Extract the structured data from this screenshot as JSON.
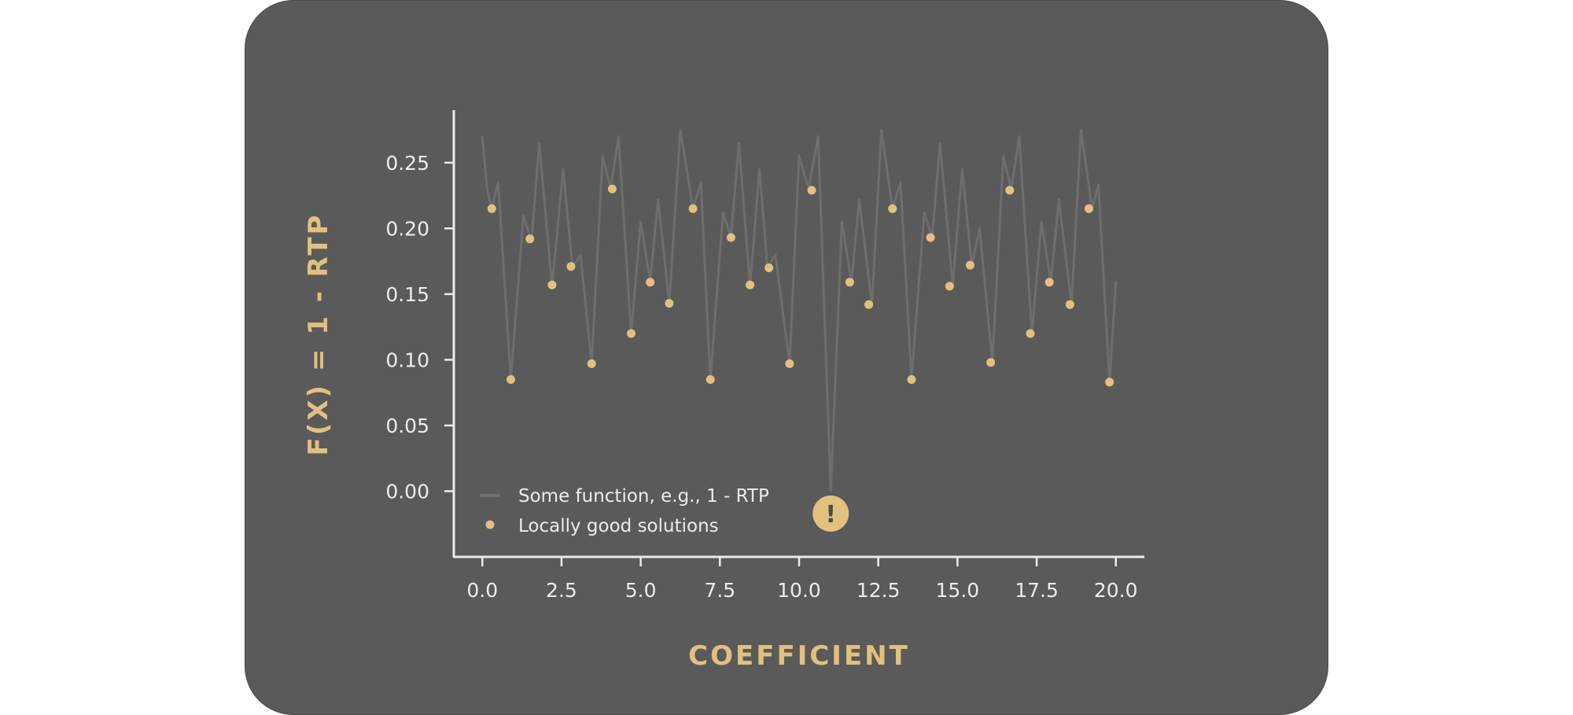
{
  "chart_data": {
    "type": "line",
    "xlabel": "COEFFICIENT",
    "ylabel": "F(X) = 1 - RTP",
    "xlim": [
      -0.9,
      20.9
    ],
    "ylim": [
      -0.05,
      0.29
    ],
    "xticks": [
      "0.0",
      "2.5",
      "5.0",
      "7.5",
      "10.0",
      "12.5",
      "15.0",
      "17.5",
      "20.0"
    ],
    "xtick_values": [
      0,
      2.5,
      5,
      7.5,
      10,
      12.5,
      15,
      17.5,
      20
    ],
    "yticks": [
      "0.00",
      "0.05",
      "0.10",
      "0.15",
      "0.20",
      "0.25"
    ],
    "ytick_values": [
      0,
      0.05,
      0.1,
      0.15,
      0.2,
      0.25
    ],
    "legend_position": "lower-left",
    "colors": {
      "background": "#5a5a5a",
      "line": "#6e6e6e",
      "points": "#e2c07f",
      "axis": "#ececec",
      "title": "#e2c07f"
    },
    "series": [
      {
        "name": "Some function, e.g., 1 - RTP",
        "kind": "line",
        "x": [
          0.0,
          0.15,
          0.3,
          0.5,
          0.9,
          1.3,
          1.55,
          1.8,
          2.2,
          2.55,
          2.85,
          3.1,
          3.45,
          3.8,
          4.05,
          4.3,
          4.7,
          5.0,
          5.3,
          5.55,
          5.9,
          6.25,
          6.65,
          6.9,
          7.2,
          7.6,
          7.85,
          8.1,
          8.45,
          8.75,
          9.0,
          9.25,
          9.7,
          10.0,
          10.3,
          10.6,
          11.0,
          11.35,
          11.65,
          11.9,
          12.3,
          12.6,
          12.95,
          13.2,
          13.55,
          13.95,
          14.2,
          14.45,
          14.85,
          15.15,
          15.45,
          15.7,
          16.1,
          16.45,
          16.7,
          16.95,
          17.35,
          17.65,
          17.95,
          18.2,
          18.6,
          18.9,
          19.25,
          19.45,
          19.8,
          20.0
        ],
        "y": [
          0.27,
          0.23,
          0.215,
          0.235,
          0.085,
          0.21,
          0.19,
          0.265,
          0.155,
          0.245,
          0.17,
          0.18,
          0.097,
          0.255,
          0.23,
          0.27,
          0.12,
          0.205,
          0.16,
          0.222,
          0.143,
          0.275,
          0.215,
          0.235,
          0.085,
          0.212,
          0.193,
          0.265,
          0.156,
          0.245,
          0.17,
          0.18,
          0.097,
          0.255,
          0.23,
          0.27,
          0.0,
          0.205,
          0.159,
          0.222,
          0.142,
          0.275,
          0.215,
          0.235,
          0.085,
          0.212,
          0.193,
          0.265,
          0.156,
          0.245,
          0.172,
          0.2,
          0.098,
          0.255,
          0.23,
          0.27,
          0.12,
          0.205,
          0.159,
          0.222,
          0.142,
          0.275,
          0.215,
          0.233,
          0.083,
          0.16
        ]
      },
      {
        "name": "Locally good solutions",
        "kind": "scatter",
        "x": [
          0.3,
          0.9,
          1.5,
          2.2,
          2.8,
          3.45,
          4.1,
          4.7,
          5.3,
          5.9,
          6.65,
          7.2,
          7.85,
          8.45,
          9.05,
          9.7,
          10.4,
          11.6,
          12.2,
          12.95,
          13.55,
          14.15,
          14.75,
          15.4,
          16.05,
          16.65,
          17.3,
          17.9,
          18.55,
          19.15,
          19.8
        ],
        "y": [
          0.215,
          0.085,
          0.192,
          0.157,
          0.171,
          0.097,
          0.23,
          0.12,
          0.159,
          0.143,
          0.215,
          0.085,
          0.193,
          0.157,
          0.17,
          0.097,
          0.229,
          0.159,
          0.142,
          0.215,
          0.085,
          0.193,
          0.156,
          0.172,
          0.098,
          0.229,
          0.12,
          0.159,
          0.142,
          0.215,
          0.083
        ]
      }
    ],
    "annotation": {
      "symbol": "!",
      "x": 11.0,
      "y": -0.017
    }
  }
}
